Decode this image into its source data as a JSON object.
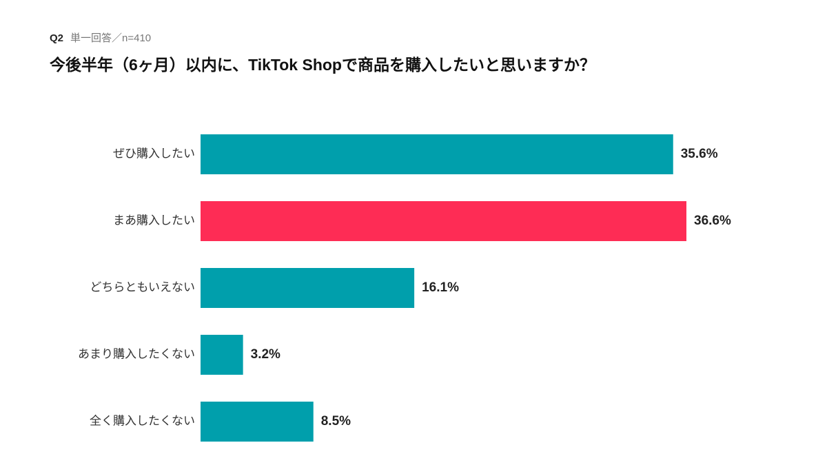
{
  "header": {
    "question": "Q2",
    "note": "単一回答／n=410"
  },
  "chart_data": {
    "type": "bar",
    "orientation": "horizontal",
    "title": "今後半年（6ヶ月）以内に、TikTok Shopで商品を購入したいと思いますか？",
    "categories": [
      "ぜひ購入したい",
      "まあ購入したい",
      "どちらともいえない",
      "あまり購入したくない",
      "全く購入したくない"
    ],
    "values": [
      35.6,
      36.6,
      16.1,
      3.2,
      8.5
    ],
    "value_labels": [
      "35.6%",
      "36.6%",
      "16.1%",
      "3.2%",
      "8.5%"
    ],
    "colors": [
      "#009fac",
      "#fe2c55",
      "#009fac",
      "#009fac",
      "#009fac"
    ]
  }
}
